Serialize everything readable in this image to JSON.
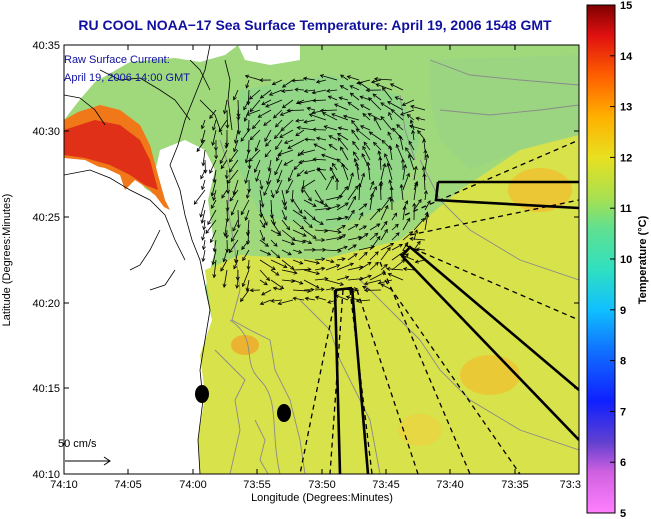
{
  "title": "RU COOL  NOAA−17  Sea Surface Temperature:  April 19, 2006 1548 GMT",
  "current_label_line1": "Raw Surface Current:",
  "current_label_line2": "April 19, 2006 14:00 GMT",
  "scale_label": "50 cm/s",
  "xlabel": "Longitude (Degrees:Minutes)",
  "ylabel": "Latitude (Degrees:Minutes)",
  "colorbar": {
    "label": "Temperature (°C)",
    "ticks": [
      "15",
      "14",
      "13",
      "12",
      "11",
      "10",
      "9",
      "8",
      "7",
      "6",
      "5"
    ],
    "range": [
      5,
      15
    ]
  },
  "x_ticks": [
    "74:10",
    "74:05",
    "74:00",
    "73:55",
    "73:50",
    "73:45",
    "73:40",
    "73:35",
    "73:3"
  ],
  "y_ticks": [
    "40:35",
    "40:30",
    "40:25",
    "40:20",
    "40:15",
    "40:10"
  ],
  "colors": {
    "title": "#1010a0",
    "land": "#ffffff",
    "sst_main": "#d8e24a",
    "sst_cool": "#8fd68a",
    "sst_warm": "#f0c838",
    "sst_hot": "#d83020"
  }
}
